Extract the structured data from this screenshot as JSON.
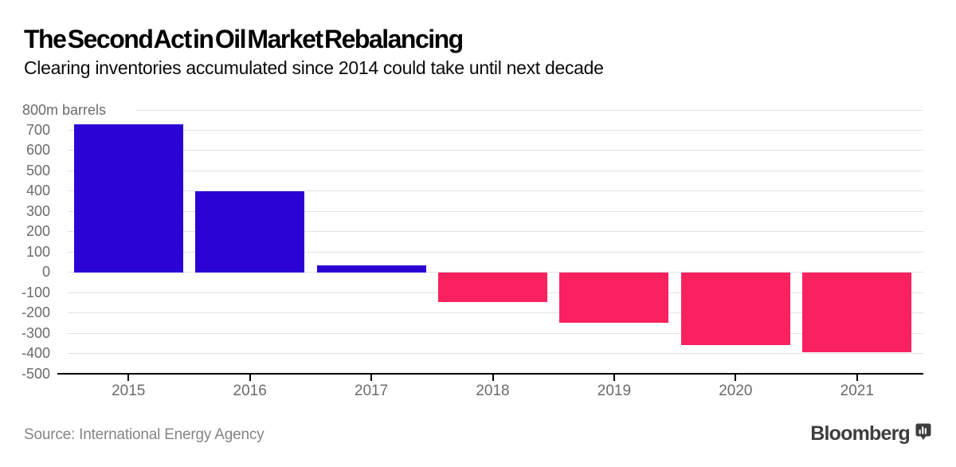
{
  "header": {
    "title": "The Second Act in Oil Market Rebalancing",
    "subtitle": "Clearing inventories accumulated since 2014 could take until next decade"
  },
  "footer": {
    "source": "Source: International Energy Agency",
    "brand": "Bloomberg"
  },
  "chart_data": {
    "type": "bar",
    "title": "The Second Act in Oil Market Rebalancing",
    "subtitle": "Clearing inventories accumulated since 2014 could take until next decade",
    "xlabel": "",
    "ylabel": "800m barrels",
    "categories": [
      "2015",
      "2016",
      "2017",
      "2018",
      "2019",
      "2020",
      "2021"
    ],
    "values": [
      730,
      400,
      35,
      -145,
      -250,
      -360,
      -395
    ],
    "ylim": [
      -500,
      800
    ],
    "y_ticks": [
      {
        "value": 800,
        "label": "800m barrels"
      },
      {
        "value": 700,
        "label": "700"
      },
      {
        "value": 600,
        "label": "600"
      },
      {
        "value": 500,
        "label": "500"
      },
      {
        "value": 400,
        "label": "400"
      },
      {
        "value": 300,
        "label": "300"
      },
      {
        "value": 200,
        "label": "200"
      },
      {
        "value": 100,
        "label": "100"
      },
      {
        "value": 0,
        "label": "0"
      },
      {
        "value": -100,
        "label": "-100"
      },
      {
        "value": -200,
        "label": "-200"
      },
      {
        "value": -300,
        "label": "-300"
      },
      {
        "value": -400,
        "label": "-400"
      },
      {
        "value": -500,
        "label": "-500"
      }
    ],
    "grid": "horizontal",
    "legend": "none",
    "colors": {
      "positive": "#2B04D5",
      "negative": "#FA215F",
      "grid": "#E2E2E7",
      "axis": "#000000",
      "tick_text": "#6B6B6B"
    }
  }
}
